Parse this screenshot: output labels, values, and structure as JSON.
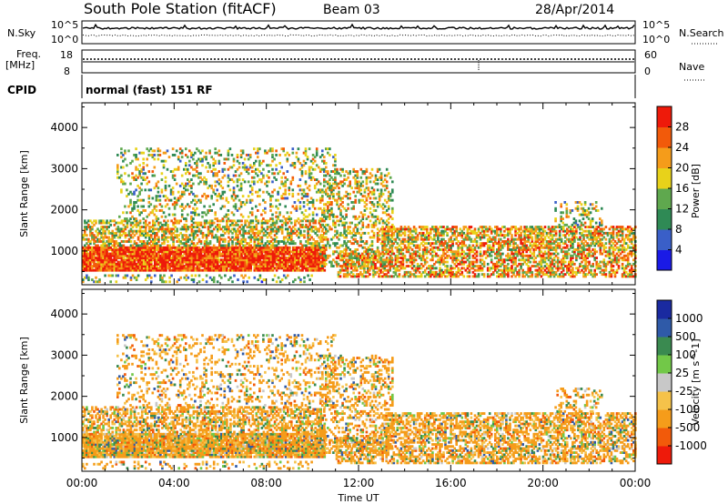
{
  "header": {
    "station": "South Pole Station (fitACF)",
    "beam": "Beam 03",
    "date": "28/Apr/2014"
  },
  "side_labels": {
    "nsky": "N.Sky",
    "nsearch": "N.Search",
    "freq_line1": "Freq.",
    "freq_line2": "[MHz]",
    "nave": "Nave",
    "cpid": "CPID",
    "cpid_value": "normal (fast) 151 RF"
  },
  "noise_panel": {
    "left_ticks": [
      "10^5",
      "10^0"
    ],
    "right_ticks": [
      "10^5",
      "10^0"
    ]
  },
  "freq_panel": {
    "left_ticks": [
      "18",
      "8"
    ],
    "right_ticks": [
      "60",
      "0"
    ]
  },
  "colors": {
    "power_scale": [
      "#1a1ae6",
      "#3a5fc8",
      "#2f8a55",
      "#5fa84e",
      "#e8d21a",
      "#f59c1a",
      "#f25a0a",
      "#ee1a0a"
    ],
    "velocity_scale": [
      "#ee1a0a",
      "#f25a0a",
      "#f59c1a",
      "#f5c24a",
      "#c8c8c8",
      "#72c848",
      "#3a8a50",
      "#2f5aa8",
      "#1a2aa0"
    ]
  },
  "chart_data": [
    {
      "type": "heatmap",
      "title": "Power",
      "xlabel": "Time UT",
      "ylabel": "Slant Range [km]",
      "x_ticks": [
        "00:00",
        "04:00",
        "08:00",
        "12:00",
        "16:00",
        "20:00",
        "00:00"
      ],
      "y_ticks": [
        "1000",
        "2000",
        "3000",
        "4000"
      ],
      "xlim": [
        0,
        24
      ],
      "ylim": [
        180,
        4600
      ],
      "colorbar": {
        "label": "Power [dB]",
        "ticks": [
          "4",
          "8",
          "12",
          "16",
          "20",
          "24",
          "28"
        ]
      }
    },
    {
      "type": "heatmap",
      "title": "Velocity",
      "xlabel": "Time UT",
      "ylabel": "Slant Range [km]",
      "x_ticks": [
        "00:00",
        "04:00",
        "08:00",
        "12:00",
        "16:00",
        "20:00",
        "00:00"
      ],
      "y_ticks": [
        "1000",
        "2000",
        "3000",
        "4000"
      ],
      "xlim": [
        0,
        24
      ],
      "ylim": [
        180,
        4600
      ],
      "colorbar": {
        "label": "Velocity [m s^-1]",
        "ticks": [
          "1000",
          "500",
          "100",
          "25",
          "-25",
          "-100",
          "-500",
          "-1000"
        ]
      }
    }
  ]
}
